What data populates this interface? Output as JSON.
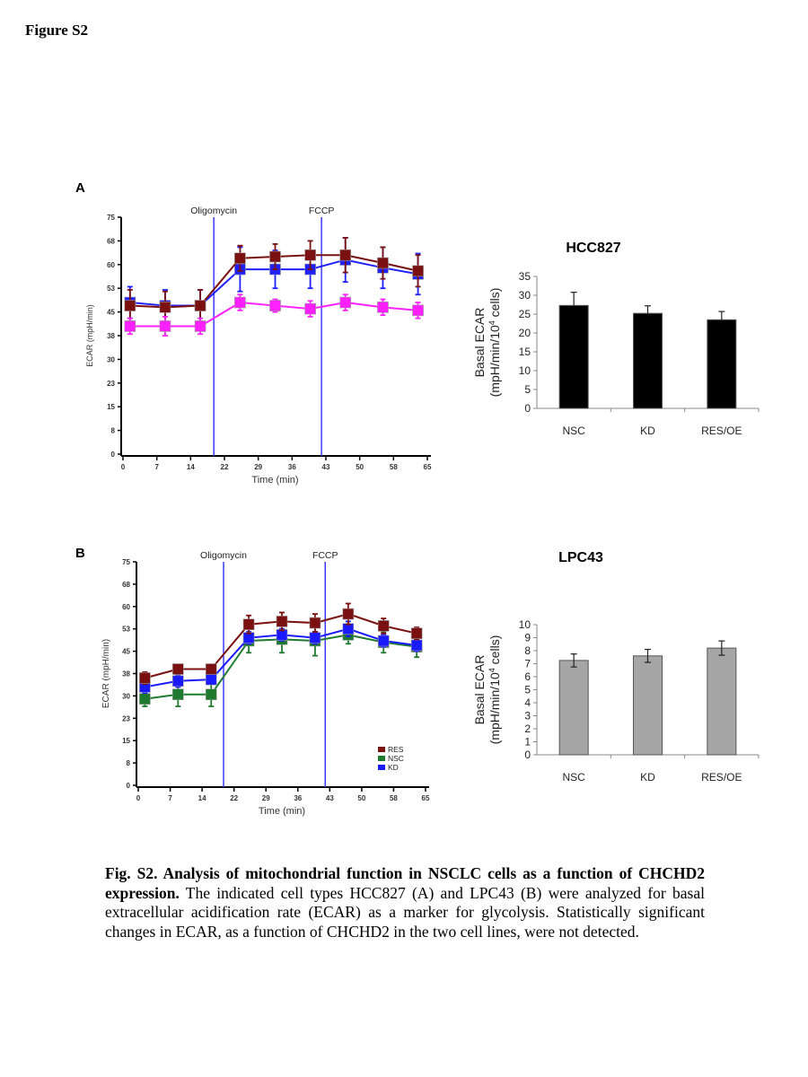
{
  "figure_label": "Figure S2",
  "panels": [
    "A",
    "B"
  ],
  "caption": {
    "bold": "Fig. S2. Analysis of mitochondrial function in NSCLC cells as a function of CHCHD2 expression.",
    "text": " The indicated cell types HCC827 (A) and LPC43 (B) were analyzed for basal extracellular acidification rate (ECAR) as a marker for glycolysis. Statistically significant changes in ECAR, as a function of CHCHD2 in the two cell lines, were not detected."
  },
  "chart_data": [
    {
      "type": "line",
      "panel": "A",
      "xlabel": "Time (min)",
      "ylabel": "ECAR (mpH/min)",
      "xlim": [
        0,
        65
      ],
      "ylim": [
        0,
        75
      ],
      "xticks": [
        "0",
        "7",
        "14",
        "22",
        "29",
        "36",
        "43",
        "50",
        "58",
        "65"
      ],
      "yticks": [
        "0",
        "8",
        "15",
        "23",
        "30",
        "38",
        "45",
        "53",
        "60",
        "68",
        "75"
      ],
      "annotations": [
        {
          "label": "Oligomycin",
          "x": 19.4
        },
        {
          "label": "FCCP",
          "x": 42.4
        }
      ],
      "x": [
        1.5,
        9,
        16.5,
        25,
        32.5,
        40,
        47.5,
        55.5,
        63
      ],
      "series": [
        {
          "color": "#2020ff",
          "values": [
            48,
            47,
            47,
            58.5,
            58.5,
            58.5,
            61.5,
            59,
            57
          ],
          "error": [
            5,
            5,
            5,
            7,
            6,
            6,
            7,
            6.5,
            6.5
          ]
        },
        {
          "color": "#7a1010",
          "values": [
            47,
            46.5,
            47,
            62,
            62.5,
            63,
            63,
            60.5,
            58
          ],
          "error": [
            5,
            5,
            5,
            4,
            4,
            4.5,
            5.5,
            5,
            5
          ]
        },
        {
          "color": "#ff20ff",
          "values": [
            40.5,
            40.5,
            40.5,
            48,
            47,
            46,
            48,
            46.5,
            45.5
          ],
          "error": [
            2.5,
            3,
            2.5,
            2.5,
            2,
            2.5,
            2.5,
            2.5,
            2.5
          ]
        }
      ],
      "grid": false
    },
    {
      "type": "bar",
      "panel": "A",
      "title": "HCC827",
      "ylabel": "Basal ECAR (mpH/min/10^4 cells)",
      "ylabel_line1": "Basal ECAR",
      "ylabel_line2_pre": "(mpH/min/10",
      "ylabel_sup": "4",
      "ylabel_line2_post": " cells)",
      "categories": [
        "NSC",
        "KD",
        "RES/OE"
      ],
      "values": [
        27.3,
        25.2,
        23.5
      ],
      "error": [
        3.5,
        2.0,
        2.2
      ],
      "ylim": [
        0,
        35
      ],
      "yticks": [
        "0",
        "5",
        "10",
        "15",
        "20",
        "25",
        "30",
        "35"
      ],
      "color": "#000000",
      "grid": false
    },
    {
      "type": "line",
      "panel": "B",
      "xlabel": "Time (min)",
      "ylabel": "ECAR (mpH/min)",
      "xlim": [
        0,
        65
      ],
      "ylim": [
        0,
        75
      ],
      "xticks": [
        "0",
        "7",
        "14",
        "22",
        "29",
        "36",
        "43",
        "50",
        "58",
        "65"
      ],
      "yticks": [
        "0",
        "8",
        "15",
        "23",
        "30",
        "38",
        "45",
        "53",
        "60",
        "68",
        "75"
      ],
      "annotations": [
        {
          "label": "Oligomycin",
          "x": 19.3
        },
        {
          "label": "FCCP",
          "x": 42.3
        }
      ],
      "x": [
        1.5,
        9,
        16.5,
        25,
        32.5,
        40,
        47.5,
        55.5,
        63
      ],
      "series": [
        {
          "name": "NSC",
          "color": "#1e7a2e",
          "values": [
            29,
            30.5,
            30.5,
            48.5,
            49,
            48.5,
            50.5,
            48,
            46.5
          ],
          "error": [
            2.5,
            4,
            4,
            4,
            4.5,
            5,
            3,
            3.5,
            3.5
          ]
        },
        {
          "name": "KD",
          "color": "#1a1aff",
          "values": [
            33,
            35,
            35.5,
            49.5,
            50.5,
            49.5,
            52.5,
            48.5,
            47
          ],
          "error": [
            2,
            2,
            1.5,
            2,
            2,
            2,
            2.5,
            2,
            2
          ]
        },
        {
          "name": "RES",
          "color": "#7a1010",
          "values": [
            36,
            39,
            39,
            54,
            55,
            54.5,
            57.5,
            53.5,
            51
          ],
          "error": [
            2,
            1,
            1,
            3,
            3,
            3,
            3.5,
            2.5,
            2
          ]
        }
      ],
      "legend": [
        "RES",
        "NSC",
        "KD"
      ],
      "legend_position": "bottom-right",
      "grid": false
    },
    {
      "type": "bar",
      "panel": "B",
      "title": "LPC43",
      "ylabel": "Basal ECAR (mpH/min/10^4 cells)",
      "ylabel_line1": "Basal ECAR",
      "ylabel_line2_pre": "(mpH/min/10",
      "ylabel_sup": "4",
      "ylabel_line2_post": " cells)",
      "categories": [
        "NSC",
        "KD",
        "RES/OE"
      ],
      "values": [
        7.25,
        7.6,
        8.2
      ],
      "error": [
        0.5,
        0.5,
        0.55
      ],
      "ylim": [
        0,
        10
      ],
      "yticks": [
        "0",
        "1",
        "2",
        "3",
        "4",
        "5",
        "6",
        "7",
        "8",
        "9",
        "10"
      ],
      "color": "#a6a6a6",
      "grid": false
    }
  ]
}
